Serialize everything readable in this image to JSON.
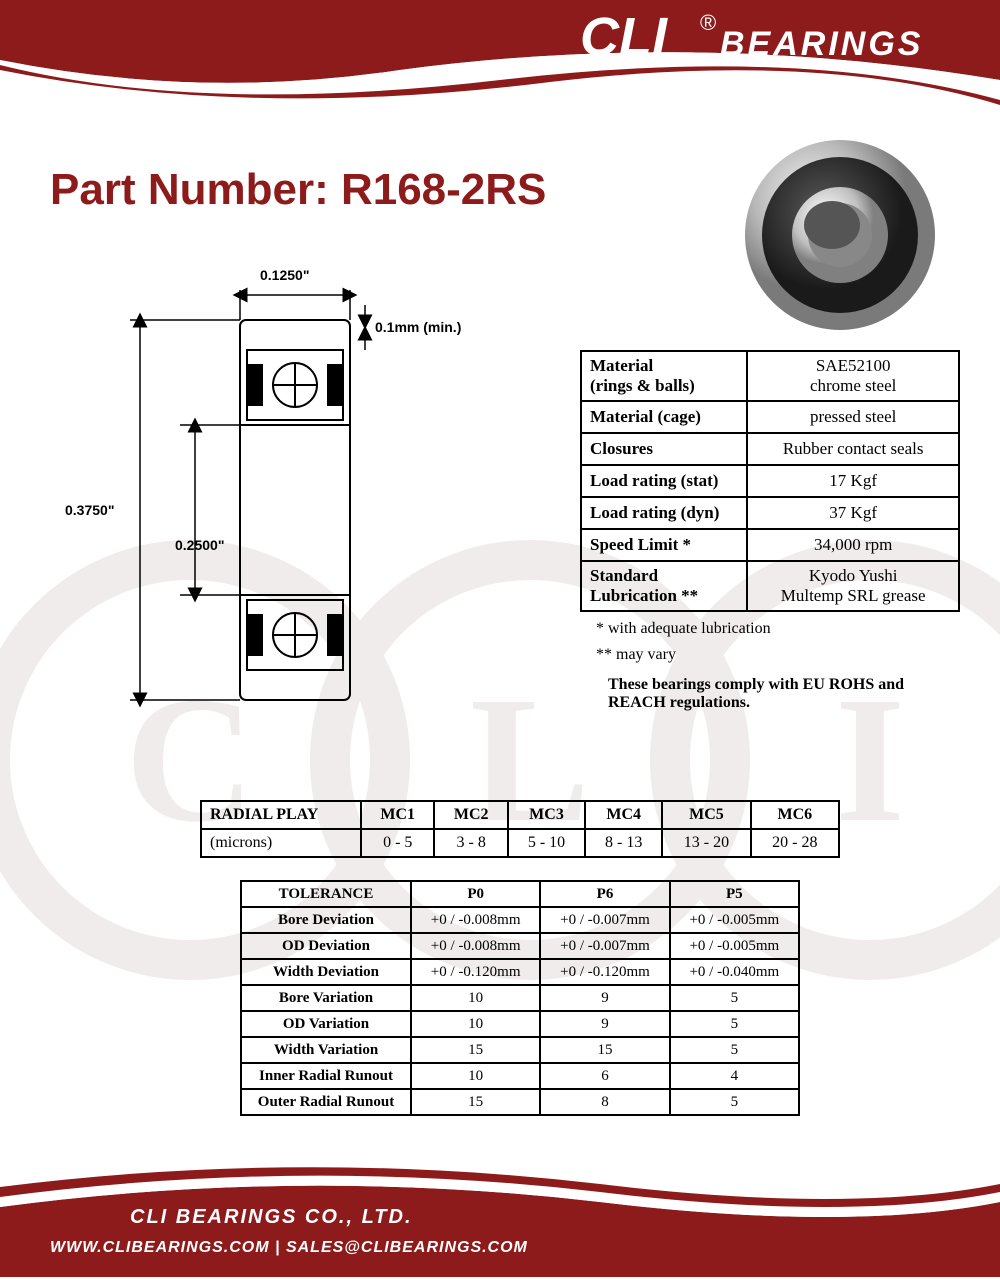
{
  "brand": {
    "logo_main": "CLI",
    "logo_sup": "®",
    "logo_sub": "BEARINGS",
    "header_bg": "#8e1b1b",
    "header_bg2": "#a82525",
    "accent": "#ffffff"
  },
  "page": {
    "title_label": "Part Number: ",
    "part_number": "R168-2RS",
    "title_color": "#8e1b1b",
    "title_fontsize": 44
  },
  "diagram": {
    "width_label": "0.1250\"",
    "od_label": "0.3750\"",
    "id_label": "0.2500\"",
    "chamfer_label": "0.1mm (min.)",
    "stroke_color": "#000000",
    "fontsize": 14
  },
  "spec_table": {
    "rows": [
      {
        "k": "Material\n(rings & balls)",
        "v": "SAE52100\nchrome steel"
      },
      {
        "k": "Material (cage)",
        "v": "pressed steel"
      },
      {
        "k": "Closures",
        "v": "Rubber contact seals"
      },
      {
        "k": "Load rating (stat)",
        "v": "17 Kgf"
      },
      {
        "k": "Load rating (dyn)",
        "v": "37 Kgf"
      },
      {
        "k": "Speed Limit *",
        "v": "34,000 rpm"
      },
      {
        "k": "Standard\nLubrication  **",
        "v": "Kyodo Yushi\nMultemp SRL grease"
      }
    ],
    "note1": "  * with adequate lubrication",
    "note2": "** may vary",
    "compliance": "These bearings comply with EU ROHS and REACH  regulations.",
    "border_color": "#000000",
    "fontsize": 17
  },
  "radial_table": {
    "header_label": "RADIAL PLAY",
    "units": "(microns)",
    "columns": [
      "MC1",
      "MC2",
      "MC3",
      "MC4",
      "MC5",
      "MC6"
    ],
    "values": [
      "0 - 5",
      "3 - 8",
      "5 - 10",
      "8 - 13",
      "13 - 20",
      "20 - 28"
    ],
    "border_color": "#000000",
    "fontsize": 16
  },
  "tolerance_table": {
    "header_label": "TOLERANCE",
    "columns": [
      "P0",
      "P6",
      "P5"
    ],
    "rows": [
      {
        "k": "Bore Deviation",
        "v": [
          "+0 / -0.008mm",
          "+0 / -0.007mm",
          "+0 / -0.005mm"
        ]
      },
      {
        "k": "OD Deviation",
        "v": [
          "+0 / -0.008mm",
          "+0 / -0.007mm",
          "+0 / -0.005mm"
        ]
      },
      {
        "k": "Width Deviation",
        "v": [
          "+0 / -0.120mm",
          "+0 / -0.120mm",
          "+0 / -0.040mm"
        ]
      },
      {
        "k": "Bore Variation",
        "v": [
          "10",
          "9",
          "5"
        ]
      },
      {
        "k": "OD Variation",
        "v": [
          "10",
          "9",
          "5"
        ]
      },
      {
        "k": "Width Variation",
        "v": [
          "15",
          "15",
          "5"
        ]
      },
      {
        "k": "Inner Radial Runout",
        "v": [
          "10",
          "6",
          "4"
        ]
      },
      {
        "k": "Outer Radial Runout",
        "v": [
          "15",
          "8",
          "5"
        ]
      }
    ],
    "border_color": "#000000",
    "fontsize": 15
  },
  "footer": {
    "company": "CLI BEARINGS CO., LTD.",
    "website": "WWW.CLIBEARINGS.COM",
    "sep": "  |  ",
    "email": "SALES@CLIBEARINGS.COM",
    "bg": "#8e1b1b"
  },
  "watermark": {
    "color": "#f0eceb",
    "letters": [
      "C",
      "L",
      "I"
    ]
  }
}
